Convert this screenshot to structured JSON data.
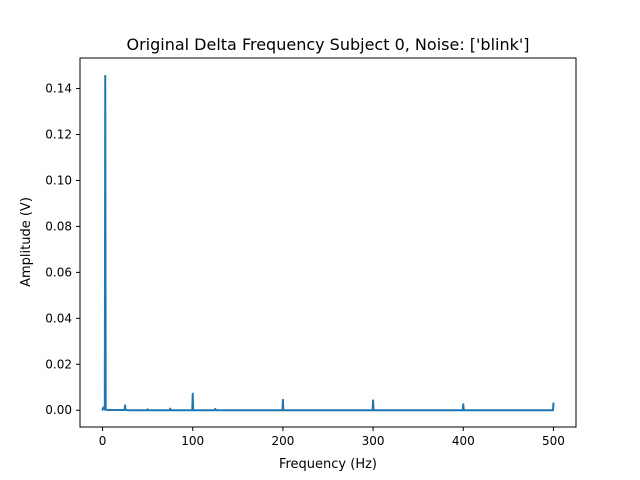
{
  "chart_data": {
    "type": "line",
    "title": "Original Delta Frequency Subject 0, Noise: ['blink']",
    "xlabel": "Frequency (Hz)",
    "ylabel": "Amplitude (V)",
    "xlim": [
      -25,
      525
    ],
    "ylim": [
      -0.0073,
      0.1533
    ],
    "xticks": [
      0,
      100,
      200,
      300,
      400,
      500
    ],
    "yticks": [
      0.0,
      0.02,
      0.04,
      0.06,
      0.08,
      0.1,
      0.12,
      0.14
    ],
    "xtick_labels": [
      "0",
      "100",
      "200",
      "300",
      "400",
      "500"
    ],
    "ytick_labels": [
      "0.00",
      "0.02",
      "0.04",
      "0.06",
      "0.08",
      "0.10",
      "0.12",
      "0.14"
    ],
    "grid": false,
    "series": [
      {
        "color": "#1f77b4",
        "x": [
          0,
          0.5,
          1,
          1.5,
          2,
          2.5,
          3,
          3.5,
          4,
          4.5,
          5,
          10,
          20,
          24.5,
          25,
          25.5,
          30,
          49.5,
          50,
          50.5,
          74.5,
          75,
          75.5,
          99.5,
          100,
          100.5,
          124.5,
          125,
          125.5,
          150,
          199.5,
          200,
          200.5,
          250,
          299.5,
          300,
          300.5,
          350,
          399.5,
          400,
          400.5,
          450,
          499.5,
          500
        ],
        "y": [
          0.0002,
          0.0008,
          0.0012,
          0.0008,
          0.0005,
          0.0003,
          0.1455,
          0.0004,
          0.0003,
          0.0002,
          0.0001,
          0.0001,
          0.0001,
          0.0001,
          0.0021,
          0.0001,
          0.0,
          0.0,
          0.0004,
          0.0,
          0.0,
          0.0007,
          0.0,
          0.0,
          0.0072,
          0.0,
          0.0,
          0.0006,
          0.0,
          0.0,
          0.0,
          0.0045,
          0.0,
          0.0,
          0.0,
          0.0043,
          0.0,
          0.0,
          0.0,
          0.0026,
          0.0,
          0.0,
          0.0,
          0.003
        ]
      }
    ]
  }
}
